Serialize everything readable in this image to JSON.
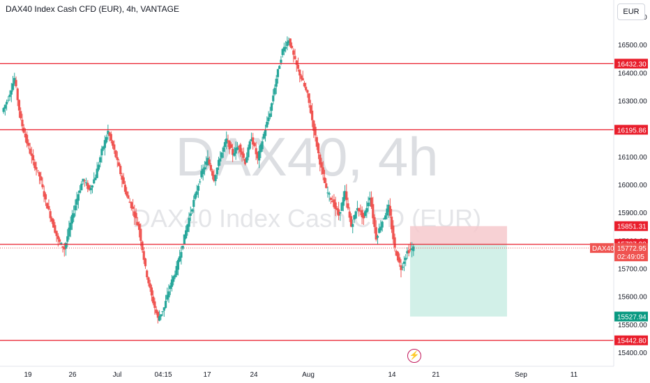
{
  "header": {
    "title": "DAX40 Index Cash CFD (EUR), 4h, VANTAGE",
    "currency": "EUR"
  },
  "watermark": {
    "main": "DAX40, 4h",
    "sub": "DAX40 Index Cash CFD (EUR)"
  },
  "icons": {
    "bolt": "bolt-icon"
  },
  "colors": {
    "up": "#26a69a",
    "down": "#ef5350",
    "level": "#e91e2c",
    "stop_zone": "#f6c9cc",
    "target_zone": "#cdeee6"
  },
  "chart_data": {
    "type": "candlestick",
    "title": "DAX40 Index Cash CFD (EUR), 4h, VANTAGE",
    "ylim": [
      15350,
      16640
    ],
    "y_ticks": [
      15400,
      15500,
      15600,
      15700,
      15800,
      15900,
      16000,
      16100,
      16200,
      16300,
      16400,
      16500,
      16600
    ],
    "y_tick_labels": [
      "15400.00",
      "15500.00",
      "15600.00",
      "15700.00",
      "15800.00",
      "15900.00",
      "16000.00",
      "16100.00",
      "16200.00",
      "16300.00",
      "16400.00",
      "16500.00",
      "16600.00"
    ],
    "x_ticks": [
      "19",
      "26",
      "Jul",
      "04:15",
      "17",
      "24",
      "Aug",
      "14",
      "21",
      "Sep",
      "11"
    ],
    "levels": [
      16432.3,
      16195.86,
      15786.19,
      15442.8
    ],
    "level_labels": [
      "16432.30",
      "16195.86",
      "15786.19",
      "15442.80"
    ],
    "position": {
      "stop": 15851.31,
      "entry": 15787.9,
      "target": 15527.94,
      "labels": {
        "stop": "15851.31",
        "entry": "15787.90",
        "target": "15527.94"
      }
    },
    "last_price": {
      "symbol": "DAX40",
      "value": 15772.95,
      "label": "15772.95",
      "countdown": "02:49:05"
    },
    "price_path": [
      [
        16260,
        "19"
      ],
      [
        16310,
        "19"
      ],
      [
        16380,
        "19"
      ],
      [
        16230,
        "19"
      ],
      [
        16150,
        "19"
      ],
      [
        16080,
        "19"
      ],
      [
        16030,
        "19"
      ],
      [
        15940,
        "26"
      ],
      [
        15870,
        "26"
      ],
      [
        15800,
        "26"
      ],
      [
        15770,
        "26"
      ],
      [
        15860,
        "26"
      ],
      [
        15950,
        "26"
      ],
      [
        16020,
        "26"
      ],
      [
        15980,
        "26"
      ],
      [
        16030,
        "26"
      ],
      [
        16120,
        "26"
      ],
      [
        16190,
        "26"
      ],
      [
        16120,
        "Jul"
      ],
      [
        16040,
        "Jul"
      ],
      [
        15960,
        "Jul"
      ],
      [
        15910,
        "Jul"
      ],
      [
        15840,
        "Jul"
      ],
      [
        15700,
        "Jul"
      ],
      [
        15600,
        "Jul"
      ],
      [
        15520,
        "Jul"
      ],
      [
        15560,
        "04:15"
      ],
      [
        15640,
        "04:15"
      ],
      [
        15700,
        "04:15"
      ],
      [
        15790,
        "04:15"
      ],
      [
        15880,
        "04:15"
      ],
      [
        15960,
        "04:15"
      ],
      [
        16040,
        "17"
      ],
      [
        16090,
        "17"
      ],
      [
        16020,
        "17"
      ],
      [
        16100,
        "17"
      ],
      [
        16160,
        "17"
      ],
      [
        16110,
        "17"
      ],
      [
        16140,
        "24"
      ],
      [
        16080,
        "24"
      ],
      [
        16170,
        "24"
      ],
      [
        16090,
        "24"
      ],
      [
        16180,
        "24"
      ],
      [
        16260,
        "24"
      ],
      [
        16380,
        "24"
      ],
      [
        16480,
        "Aug"
      ],
      [
        16520,
        "Aug"
      ],
      [
        16440,
        "Aug"
      ],
      [
        16380,
        "Aug"
      ],
      [
        16320,
        "Aug"
      ],
      [
        16200,
        "Aug"
      ],
      [
        16080,
        "Aug"
      ],
      [
        15980,
        "Aug"
      ],
      [
        15940,
        "Aug"
      ],
      [
        15890,
        "Aug"
      ],
      [
        15970,
        "Aug"
      ],
      [
        15850,
        "Aug"
      ],
      [
        15920,
        "14"
      ],
      [
        15880,
        "14"
      ],
      [
        15960,
        "14"
      ],
      [
        15810,
        "14"
      ],
      [
        15870,
        "14"
      ],
      [
        15920,
        "14"
      ],
      [
        15770,
        "14"
      ],
      [
        15700,
        "14"
      ],
      [
        15760,
        "14"
      ],
      [
        15773,
        "14"
      ]
    ]
  }
}
